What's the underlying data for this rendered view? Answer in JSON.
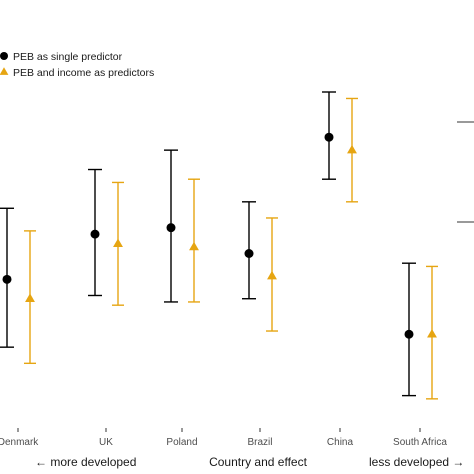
{
  "chart_data": {
    "type": "scatter",
    "subtype": "point-with-error-bars",
    "title": "",
    "categories": [
      "Denmark",
      "UK",
      "Poland",
      "Brazil",
      "China",
      "South Africa"
    ],
    "xlabel": "Country and effect",
    "xlabel_left": "← more developed",
    "xlabel_right": "less developed →",
    "ylabel": "",
    "ylim": [
      0,
      1
    ],
    "grid": false,
    "legend_position": "top-left",
    "series": [
      {
        "name": "PEB as single predictor",
        "marker": "circle",
        "color": "#000000",
        "values": [
          0.42,
          0.56,
          0.58,
          0.5,
          0.86,
          0.25
        ],
        "lower": [
          0.21,
          0.37,
          0.35,
          0.36,
          0.73,
          0.06
        ],
        "upper": [
          0.64,
          0.76,
          0.82,
          0.66,
          1.0,
          0.47
        ]
      },
      {
        "name": "PEB and income as predictors",
        "marker": "triangle",
        "color": "#E6A512",
        "values": [
          0.36,
          0.53,
          0.52,
          0.43,
          0.82,
          0.25
        ],
        "lower": [
          0.16,
          0.34,
          0.35,
          0.26,
          0.66,
          0.05
        ],
        "upper": [
          0.57,
          0.72,
          0.73,
          0.61,
          0.98,
          0.46
        ]
      }
    ]
  }
}
